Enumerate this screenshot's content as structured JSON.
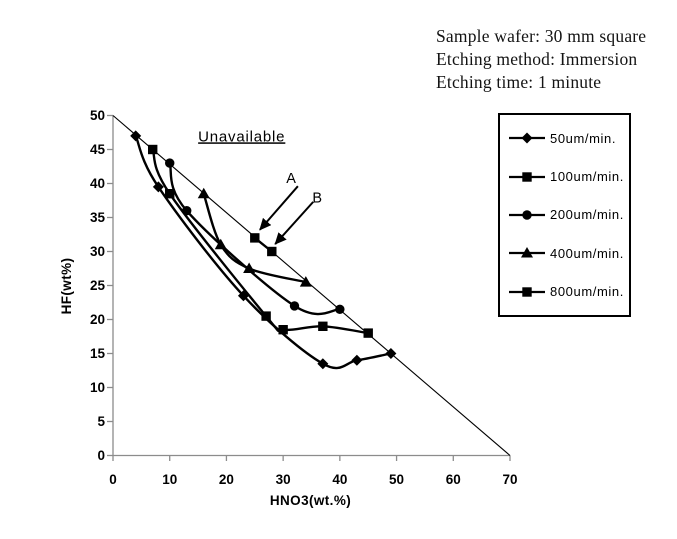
{
  "info_block": {
    "lines": [
      "Sample wafer: 30 mm square",
      "Etching method: Immersion",
      "Etching time: 1 minute"
    ]
  },
  "chart_data": {
    "type": "line",
    "title": "",
    "xlabel": "HNO3(wt.%)",
    "ylabel": "HF(wt%)",
    "xlim": [
      0,
      70
    ],
    "ylim": [
      0,
      50
    ],
    "xticks": [
      0,
      10,
      20,
      30,
      40,
      50,
      60,
      70
    ],
    "yticks": [
      0,
      5,
      10,
      15,
      20,
      25,
      30,
      35,
      40,
      45,
      50
    ],
    "grid": false,
    "legend_position": "right",
    "line_color": "#000000",
    "axis_color": "#8c8c8c",
    "boundary_line": {
      "points": [
        [
          0,
          50
        ],
        [
          70,
          0
        ]
      ]
    },
    "series": [
      {
        "name": "50um/min.",
        "marker": "diamond",
        "points": [
          [
            4,
            47
          ],
          [
            8,
            39.5
          ],
          [
            23,
            23.5
          ],
          [
            37,
            13.5
          ],
          [
            43,
            14
          ],
          [
            49,
            15
          ]
        ]
      },
      {
        "name": "100um/min.",
        "marker": "square",
        "points": [
          [
            7,
            45
          ],
          [
            10,
            38.5
          ],
          [
            27,
            20.5
          ],
          [
            30,
            18.5
          ],
          [
            37,
            19
          ],
          [
            45,
            18
          ]
        ]
      },
      {
        "name": "200um/min.",
        "marker": "circle",
        "points": [
          [
            10,
            43
          ],
          [
            13,
            36
          ],
          [
            32,
            22
          ],
          [
            40,
            21.5
          ]
        ]
      },
      {
        "name": "400um/min.",
        "marker": "triangle",
        "points": [
          [
            16,
            38.5
          ],
          [
            19,
            31
          ],
          [
            24,
            27.5
          ],
          [
            34,
            25.5
          ]
        ]
      },
      {
        "name": "800um/min.",
        "marker": "square",
        "points": [
          [
            25,
            32
          ],
          [
            28,
            30
          ]
        ]
      }
    ],
    "annotations": [
      {
        "text": "Unavailable",
        "x": 22.7,
        "y": 46.2,
        "underline": true
      },
      {
        "text": "A",
        "x": 31.4,
        "y": 40.1,
        "underline": false
      },
      {
        "text": "B",
        "x": 36.0,
        "y": 37.2,
        "underline": false
      }
    ],
    "arrows": [
      {
        "label": "A",
        "x1": 32.6,
        "y1": 39.6,
        "x2": 25.9,
        "y2": 33.2
      },
      {
        "label": "B",
        "x1": 35.3,
        "y1": 37.3,
        "x2": 28.6,
        "y2": 31.1
      }
    ]
  }
}
